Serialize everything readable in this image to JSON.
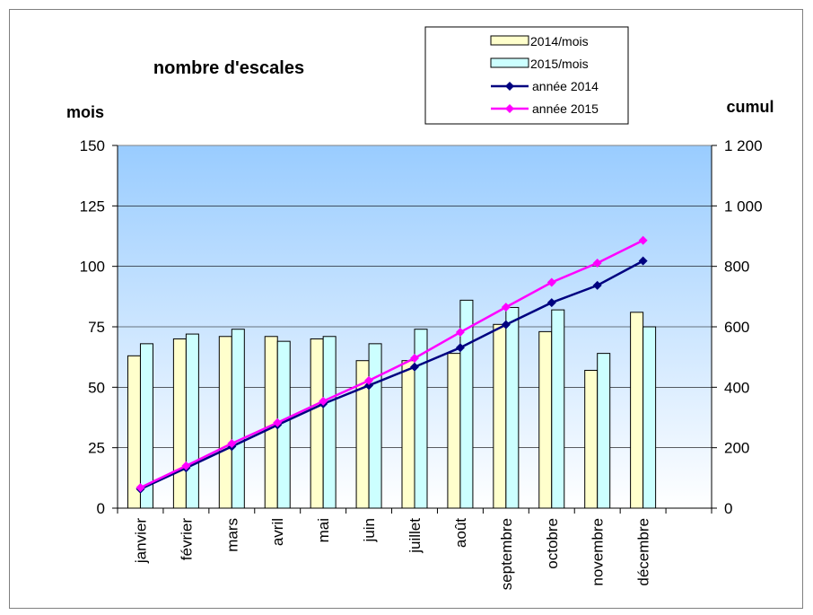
{
  "chart_data": {
    "type": "bar+line",
    "title": "nombre d'escales",
    "ylabel_left": "mois",
    "ylabel_right": "cumul",
    "categories": [
      "janvier",
      "février",
      "mars",
      "avril",
      "mai",
      "juin",
      "juillet",
      "août",
      "septembre",
      "octobre",
      "novembre",
      "décembre"
    ],
    "y_left": {
      "min": 0,
      "max": 150,
      "ticks": [
        "0",
        "25",
        "50",
        "75",
        "100",
        "125",
        "150"
      ]
    },
    "y_right": {
      "min": 0,
      "max": 1200,
      "ticks": [
        "0",
        "200",
        "400",
        "600",
        "800",
        "1 000",
        "1 200"
      ]
    },
    "bar_series": [
      {
        "name": "2014/mois",
        "color": "#ffffcc",
        "values": [
          63,
          70,
          71,
          71,
          70,
          61,
          61,
          64,
          76,
          73,
          57,
          81
        ]
      },
      {
        "name": "2015/mois",
        "color": "#ccffff",
        "values": [
          68,
          72,
          74,
          69,
          71,
          68,
          74,
          86,
          83,
          82,
          64,
          75
        ]
      }
    ],
    "line_series": [
      {
        "name": "année 2014",
        "color": "#000080",
        "values": [
          63,
          133,
          204,
          275,
          345,
          406,
          467,
          531,
          607,
          680,
          737,
          818
        ]
      },
      {
        "name": "année 2015",
        "color": "#ff00ff",
        "values": [
          68,
          140,
          214,
          283,
          354,
          422,
          496,
          582,
          665,
          747,
          811,
          886
        ]
      }
    ],
    "plot_background": [
      "#99ccff",
      "#ffffff"
    ],
    "grid": true,
    "legend_position": "top-right"
  }
}
